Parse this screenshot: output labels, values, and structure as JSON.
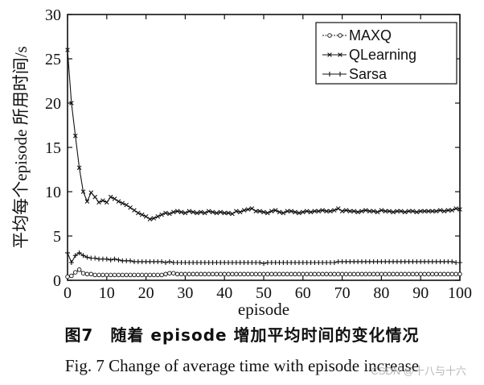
{
  "caption": {
    "chinese": "图7　随着 episode 增加平均时间的变化情况",
    "english": "Fig. 7   Change of average time with episode increase"
  },
  "watermark": "CSDN @十八与十六",
  "chart_data": {
    "type": "line",
    "title": "",
    "xlabel": "episode",
    "ylabel": "平均每个episode 所用时间/s",
    "xlim": [
      0,
      100
    ],
    "ylim": [
      0,
      30
    ],
    "xticks": [
      0,
      10,
      20,
      30,
      40,
      50,
      60,
      70,
      80,
      90,
      100
    ],
    "yticks": [
      0,
      5,
      10,
      15,
      20,
      25,
      30
    ],
    "legend_position": "top-right",
    "x": [
      0,
      1,
      2,
      3,
      4,
      5,
      6,
      7,
      8,
      9,
      10,
      11,
      12,
      13,
      14,
      15,
      16,
      17,
      18,
      19,
      20,
      21,
      22,
      23,
      24,
      25,
      26,
      27,
      28,
      29,
      30,
      31,
      32,
      33,
      34,
      35,
      36,
      37,
      38,
      39,
      40,
      41,
      42,
      43,
      44,
      45,
      46,
      47,
      48,
      49,
      50,
      51,
      52,
      53,
      54,
      55,
      56,
      57,
      58,
      59,
      60,
      61,
      62,
      63,
      64,
      65,
      66,
      67,
      68,
      69,
      70,
      71,
      72,
      73,
      74,
      75,
      76,
      77,
      78,
      79,
      80,
      81,
      82,
      83,
      84,
      85,
      86,
      87,
      88,
      89,
      90,
      91,
      92,
      93,
      94,
      95,
      96,
      97,
      98,
      99,
      100
    ],
    "series": [
      {
        "name": "MAXQ",
        "marker": "circle",
        "values": [
          0.4,
          0.5,
          0.9,
          1.2,
          0.8,
          0.7,
          0.7,
          0.6,
          0.6,
          0.6,
          0.6,
          0.6,
          0.6,
          0.6,
          0.6,
          0.6,
          0.6,
          0.6,
          0.6,
          0.6,
          0.6,
          0.6,
          0.6,
          0.6,
          0.6,
          0.7,
          0.8,
          0.8,
          0.7,
          0.7,
          0.7,
          0.7,
          0.7,
          0.7,
          0.7,
          0.7,
          0.7,
          0.7,
          0.7,
          0.7,
          0.7,
          0.7,
          0.7,
          0.7,
          0.7,
          0.7,
          0.7,
          0.7,
          0.7,
          0.7,
          0.7,
          0.7,
          0.7,
          0.7,
          0.7,
          0.7,
          0.7,
          0.7,
          0.7,
          0.7,
          0.7,
          0.7,
          0.7,
          0.7,
          0.7,
          0.7,
          0.7,
          0.7,
          0.7,
          0.7,
          0.7,
          0.7,
          0.7,
          0.7,
          0.7,
          0.7,
          0.7,
          0.7,
          0.7,
          0.7,
          0.7,
          0.7,
          0.7,
          0.7,
          0.7,
          0.7,
          0.7,
          0.7,
          0.7,
          0.7,
          0.7,
          0.7,
          0.7,
          0.7,
          0.7,
          0.7,
          0.7,
          0.7,
          0.7,
          0.7,
          0.7
        ]
      },
      {
        "name": "QLearning",
        "marker": "x",
        "values": [
          26.0,
          20.0,
          16.3,
          12.7,
          10.0,
          8.9,
          9.9,
          9.4,
          8.8,
          9.0,
          8.8,
          9.4,
          9.2,
          8.9,
          8.7,
          8.5,
          8.2,
          7.9,
          7.6,
          7.4,
          7.2,
          6.9,
          7.0,
          7.2,
          7.4,
          7.6,
          7.5,
          7.7,
          7.8,
          7.7,
          7.6,
          7.8,
          7.7,
          7.6,
          7.7,
          7.6,
          7.8,
          7.7,
          7.6,
          7.7,
          7.6,
          7.6,
          7.5,
          7.8,
          7.7,
          7.9,
          8.0,
          8.1,
          7.8,
          7.8,
          7.7,
          7.6,
          7.8,
          7.9,
          7.7,
          7.6,
          7.8,
          7.8,
          7.7,
          7.6,
          7.7,
          7.8,
          7.7,
          7.8,
          7.8,
          7.9,
          7.8,
          7.8,
          7.9,
          8.1,
          7.8,
          7.9,
          7.8,
          7.8,
          7.7,
          7.8,
          7.9,
          7.8,
          7.8,
          7.7,
          7.9,
          7.8,
          7.8,
          7.7,
          7.8,
          7.8,
          7.7,
          7.8,
          7.8,
          7.7,
          7.8,
          7.8,
          7.8,
          7.8,
          7.8,
          7.9,
          7.8,
          7.9,
          7.9,
          8.1,
          8.0
        ]
      },
      {
        "name": "Sarsa",
        "marker": "plus",
        "values": [
          3.1,
          2.0,
          2.8,
          3.1,
          2.8,
          2.6,
          2.5,
          2.5,
          2.4,
          2.4,
          2.4,
          2.3,
          2.4,
          2.3,
          2.2,
          2.2,
          2.2,
          2.1,
          2.1,
          2.1,
          2.1,
          2.1,
          2.1,
          2.1,
          2.1,
          2.0,
          2.1,
          2.0,
          2.0,
          2.0,
          2.0,
          2.0,
          2.0,
          2.0,
          2.0,
          2.0,
          2.0,
          2.0,
          2.0,
          2.0,
          2.0,
          2.0,
          2.0,
          2.0,
          2.0,
          2.0,
          2.0,
          2.0,
          2.0,
          2.0,
          1.9,
          2.0,
          2.0,
          2.0,
          2.0,
          2.0,
          2.0,
          2.0,
          2.0,
          2.0,
          2.0,
          2.0,
          2.0,
          2.0,
          2.0,
          2.0,
          2.0,
          2.0,
          2.0,
          2.1,
          2.1,
          2.1,
          2.1,
          2.1,
          2.1,
          2.1,
          2.1,
          2.1,
          2.1,
          2.1,
          2.1,
          2.1,
          2.1,
          2.1,
          2.1,
          2.1,
          2.1,
          2.1,
          2.1,
          2.1,
          2.1,
          2.1,
          2.1,
          2.1,
          2.1,
          2.1,
          2.1,
          2.1,
          2.1,
          2.0,
          2.0
        ]
      }
    ]
  }
}
